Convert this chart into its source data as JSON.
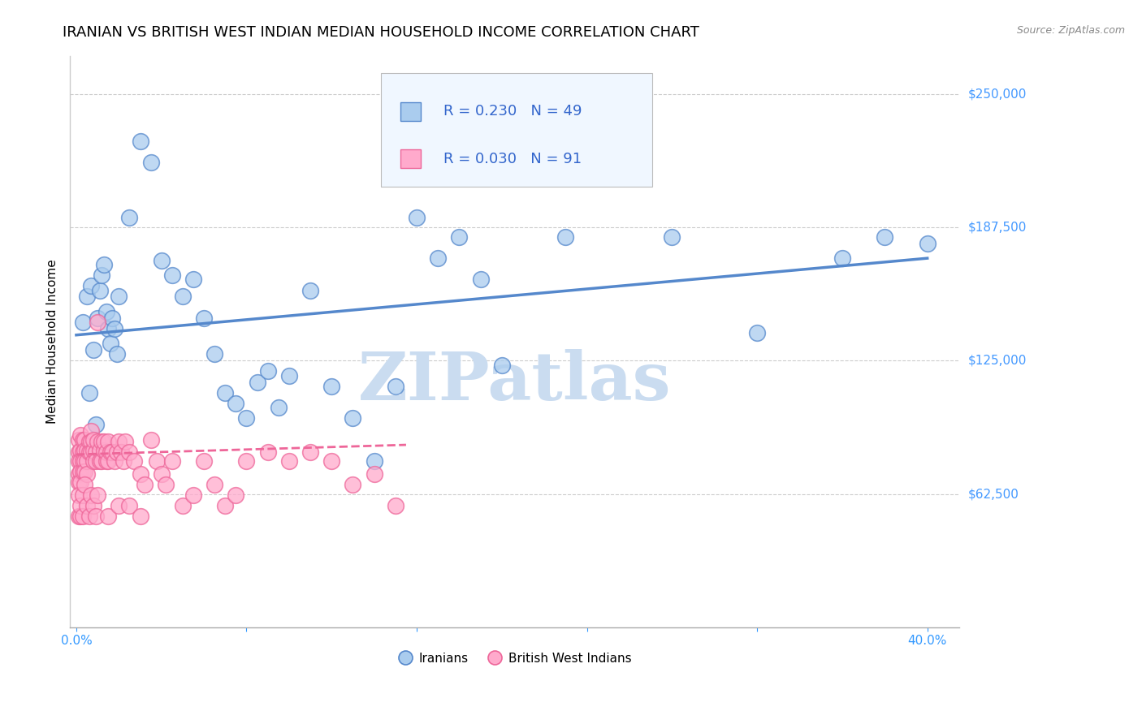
{
  "title": "IRANIAN VS BRITISH WEST INDIAN MEDIAN HOUSEHOLD INCOME CORRELATION CHART",
  "source": "Source: ZipAtlas.com",
  "ylabel": "Median Household Income",
  "ytick_labels": [
    "$62,500",
    "$125,000",
    "$187,500",
    "$250,000"
  ],
  "ytick_values": [
    62500,
    125000,
    187500,
    250000
  ],
  "ymin": 0,
  "ymax": 268000,
  "xmin": -0.003,
  "xmax": 0.415,
  "watermark": "ZIPatlas",
  "iranians_label": "Iranians",
  "bwi_label": "British West Indians",
  "iranian_R": "0.230",
  "iranian_N": "49",
  "bwi_R": "0.030",
  "bwi_N": "91",
  "iranian_color": "#AACCEE",
  "iranian_edge_color": "#5588CC",
  "bwi_color": "#FFAACC",
  "bwi_edge_color": "#EE6699",
  "iranian_scatter_x": [
    0.003,
    0.005,
    0.006,
    0.007,
    0.008,
    0.009,
    0.01,
    0.011,
    0.012,
    0.013,
    0.014,
    0.015,
    0.016,
    0.017,
    0.018,
    0.019,
    0.02,
    0.025,
    0.03,
    0.035,
    0.04,
    0.045,
    0.05,
    0.055,
    0.06,
    0.065,
    0.07,
    0.075,
    0.08,
    0.085,
    0.09,
    0.095,
    0.1,
    0.11,
    0.12,
    0.13,
    0.14,
    0.15,
    0.16,
    0.17,
    0.18,
    0.19,
    0.2,
    0.23,
    0.28,
    0.32,
    0.36,
    0.38,
    0.4
  ],
  "iranian_scatter_y": [
    143000,
    155000,
    110000,
    160000,
    130000,
    95000,
    145000,
    158000,
    165000,
    170000,
    148000,
    140000,
    133000,
    145000,
    140000,
    128000,
    155000,
    192000,
    228000,
    218000,
    172000,
    165000,
    155000,
    163000,
    145000,
    128000,
    110000,
    105000,
    98000,
    115000,
    120000,
    103000,
    118000,
    158000,
    113000,
    98000,
    78000,
    113000,
    192000,
    173000,
    183000,
    163000,
    123000,
    183000,
    183000,
    138000,
    173000,
    183000,
    180000
  ],
  "bwi_scatter_x": [
    0.001,
    0.001,
    0.001,
    0.001,
    0.001,
    0.002,
    0.002,
    0.002,
    0.002,
    0.002,
    0.003,
    0.003,
    0.003,
    0.003,
    0.004,
    0.004,
    0.004,
    0.004,
    0.005,
    0.005,
    0.005,
    0.006,
    0.006,
    0.007,
    0.007,
    0.007,
    0.008,
    0.008,
    0.008,
    0.009,
    0.009,
    0.01,
    0.01,
    0.011,
    0.011,
    0.012,
    0.012,
    0.013,
    0.013,
    0.014,
    0.014,
    0.015,
    0.015,
    0.016,
    0.017,
    0.018,
    0.019,
    0.02,
    0.021,
    0.022,
    0.023,
    0.025,
    0.027,
    0.03,
    0.032,
    0.035,
    0.038,
    0.04,
    0.042,
    0.045,
    0.05,
    0.055,
    0.06,
    0.065,
    0.07,
    0.075,
    0.08,
    0.09,
    0.1,
    0.11,
    0.12,
    0.13,
    0.14,
    0.15,
    0.001,
    0.001,
    0.002,
    0.002,
    0.003,
    0.003,
    0.004,
    0.005,
    0.006,
    0.007,
    0.008,
    0.009,
    0.01,
    0.015,
    0.02,
    0.025,
    0.03
  ],
  "bwi_scatter_y": [
    88000,
    82000,
    78000,
    72000,
    68000,
    90000,
    83000,
    78000,
    73000,
    68000,
    88000,
    82000,
    78000,
    73000,
    88000,
    83000,
    78000,
    73000,
    83000,
    78000,
    72000,
    87000,
    82000,
    92000,
    87000,
    82000,
    78000,
    83000,
    88000,
    82000,
    78000,
    143000,
    87000,
    83000,
    78000,
    87000,
    78000,
    83000,
    87000,
    78000,
    82000,
    87000,
    78000,
    82000,
    82000,
    78000,
    82000,
    87000,
    82000,
    78000,
    87000,
    82000,
    78000,
    72000,
    67000,
    88000,
    78000,
    72000,
    67000,
    78000,
    57000,
    62000,
    78000,
    67000,
    57000,
    62000,
    78000,
    82000,
    78000,
    82000,
    78000,
    67000,
    72000,
    57000,
    62000,
    52000,
    52000,
    57000,
    52000,
    62000,
    67000,
    57000,
    52000,
    62000,
    57000,
    52000,
    62000,
    52000,
    57000,
    57000,
    52000
  ],
  "iranian_trend_x": [
    0.0,
    0.4
  ],
  "iranian_trend_y": [
    137000,
    173000
  ],
  "bwi_trend_x": [
    0.0,
    0.155
  ],
  "bwi_trend_y": [
    81000,
    85500
  ],
  "legend_box_color": "#F0F7FF",
  "legend_border_color": "#BBBBBB",
  "legend_text_color": "#000000",
  "legend_val_color": "#3366CC",
  "grid_color": "#CCCCCC",
  "background_color": "#FFFFFF",
  "title_fontsize": 13,
  "axis_label_fontsize": 11,
  "tick_fontsize": 11,
  "right_tick_color": "#4499FF",
  "xtick_color": "#3399FF",
  "watermark_color": "#CADCF0",
  "watermark_fontsize": 60
}
